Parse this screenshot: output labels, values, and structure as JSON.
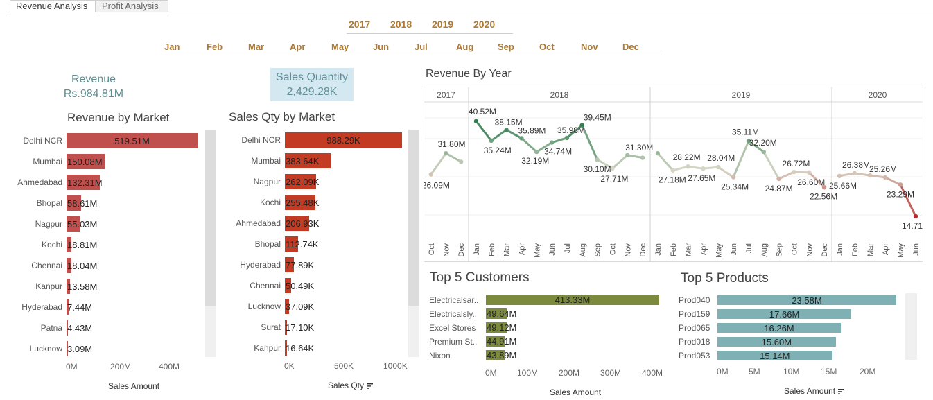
{
  "tabs": [
    "Revenue Analysis",
    "Profit Analysis"
  ],
  "years": [
    "2017",
    "2018",
    "2019",
    "2020"
  ],
  "months": [
    "Jan",
    "Feb",
    "Mar",
    "Apr",
    "May",
    "Jun",
    "Jul",
    "Aug",
    "Sep",
    "Oct",
    "Nov",
    "Dec"
  ],
  "kpi": {
    "revenue_title": "Revenue",
    "revenue_value": "Rs.984.81M",
    "qty_title": "Sales Quantity",
    "qty_value": "2,429.28K"
  },
  "colors": {
    "revenue_bar": "#c0504d",
    "qty_bar": "#c23b22",
    "customer_bar": "#7b8a3d",
    "product_bar": "#7fb0b3",
    "filter_text": "#b07a32",
    "kpi_text": "#5f8f93"
  },
  "revenue_by_market": {
    "title": "Revenue by Market",
    "axis_title": "Sales Amount",
    "ticks": [
      "0M",
      "200M",
      "400M"
    ],
    "categories": [
      "Delhi NCR",
      "Mumbai",
      "Ahmedabad",
      "Bhopal",
      "Nagpur",
      "Kochi",
      "Chennai",
      "Kanpur",
      "Hyderabad",
      "Patna",
      "Lucknow"
    ],
    "labels": [
      "519.51M",
      "150.08M",
      "132.31M",
      "58.61M",
      "55.03M",
      "18.81M",
      "18.04M",
      "13.58M",
      "7.44M",
      "4.43M",
      "3.09M"
    ],
    "values": [
      519.51,
      150.08,
      132.31,
      58.61,
      55.03,
      18.81,
      18.04,
      13.58,
      7.44,
      4.43,
      3.09
    ]
  },
  "qty_by_market": {
    "title": "Sales Qty by Market",
    "axis_title": "Sales Qty",
    "ticks": [
      "0K",
      "500K",
      "1000K"
    ],
    "categories": [
      "Delhi NCR",
      "Mumbai",
      "Nagpur",
      "Kochi",
      "Ahmedabad",
      "Bhopal",
      "Hyderabad",
      "Chennai",
      "Lucknow",
      "Surat",
      "Kanpur"
    ],
    "labels": [
      "988.29K",
      "383.64K",
      "262.09K",
      "255.48K",
      "206.93K",
      "112.74K",
      "77.89K",
      "50.49K",
      "37.09K",
      "17.10K",
      "16.64K"
    ],
    "values": [
      988.29,
      383.64,
      262.09,
      255.48,
      206.93,
      112.74,
      77.89,
      50.49,
      37.09,
      17.1,
      16.64
    ]
  },
  "revenue_by_year": {
    "title": "Revenue By Year",
    "panels": [
      {
        "year": "2017",
        "months": [
          "Oct",
          "Nov",
          "Dec"
        ],
        "values": [
          26.09,
          31.8,
          29.5
        ],
        "labels": [
          "26.09M",
          "31.80M",
          ""
        ]
      },
      {
        "year": "2018",
        "months": [
          "Jan",
          "Feb",
          "Mar",
          "Apr",
          "May",
          "Jun",
          "Jul",
          "Aug",
          "Sep",
          "Oct",
          "Nov",
          "Dec"
        ],
        "values": [
          40.52,
          35.24,
          38.15,
          35.89,
          32.19,
          34.74,
          35.98,
          39.45,
          30.1,
          27.71,
          31.3,
          30.6
        ],
        "labels": [
          "40.52M",
          "35.24M",
          "38.15M",
          "35.89M",
          "32.19M",
          "34.74M",
          "35.98M",
          "39.45M",
          "30.10M",
          "27.71M",
          "31.30M",
          ""
        ]
      },
      {
        "year": "2019",
        "months": [
          "Jan",
          "Feb",
          "Mar",
          "Apr",
          "May",
          "Jun",
          "Jul",
          "Aug",
          "Sep",
          "Oct",
          "Nov",
          "Dec"
        ],
        "values": [
          31.8,
          27.18,
          28.22,
          27.65,
          28.04,
          25.34,
          35.11,
          32.2,
          24.87,
          26.72,
          26.6,
          22.56
        ],
        "labels": [
          "",
          "27.18M",
          "28.22M",
          "27.65M",
          "28.04M",
          "25.34M",
          "35.11M",
          "32.20M",
          "24.87M",
          "26.72M",
          "26.60M",
          "22.56M"
        ]
      },
      {
        "year": "2020",
        "months": [
          "Jan",
          "Feb",
          "Mar",
          "Apr",
          "May",
          "Jun"
        ],
        "values": [
          25.66,
          26.38,
          25.8,
          25.26,
          23.29,
          14.71
        ],
        "labels": [
          "25.66M",
          "26.38M",
          "",
          "25.26M",
          "23.29M",
          "14.71M"
        ]
      }
    ]
  },
  "top_customers": {
    "title": "Top 5 Customers",
    "axis_title": "Sales Amount",
    "ticks": [
      "0M",
      "100M",
      "200M",
      "300M",
      "400M"
    ],
    "categories": [
      "Electricalsar..",
      "Electricalsly..",
      "Excel Stores",
      "Premium St..",
      "Nixon"
    ],
    "labels": [
      "413.33M",
      "49.64M",
      "49.12M",
      "44.91M",
      "43.89M"
    ],
    "values": [
      413.33,
      49.64,
      49.12,
      44.91,
      43.89
    ]
  },
  "top_products": {
    "title": "Top 5 Products",
    "axis_title": "Sales Amount",
    "ticks": [
      "0M",
      "5M",
      "10M",
      "15M",
      "20M"
    ],
    "categories": [
      "Prod040",
      "Prod159",
      "Prod065",
      "Prod018",
      "Prod053"
    ],
    "labels": [
      "23.58M",
      "17.66M",
      "16.26M",
      "15.60M",
      "15.14M"
    ],
    "values": [
      23.58,
      17.66,
      16.26,
      15.6,
      15.14
    ]
  }
}
